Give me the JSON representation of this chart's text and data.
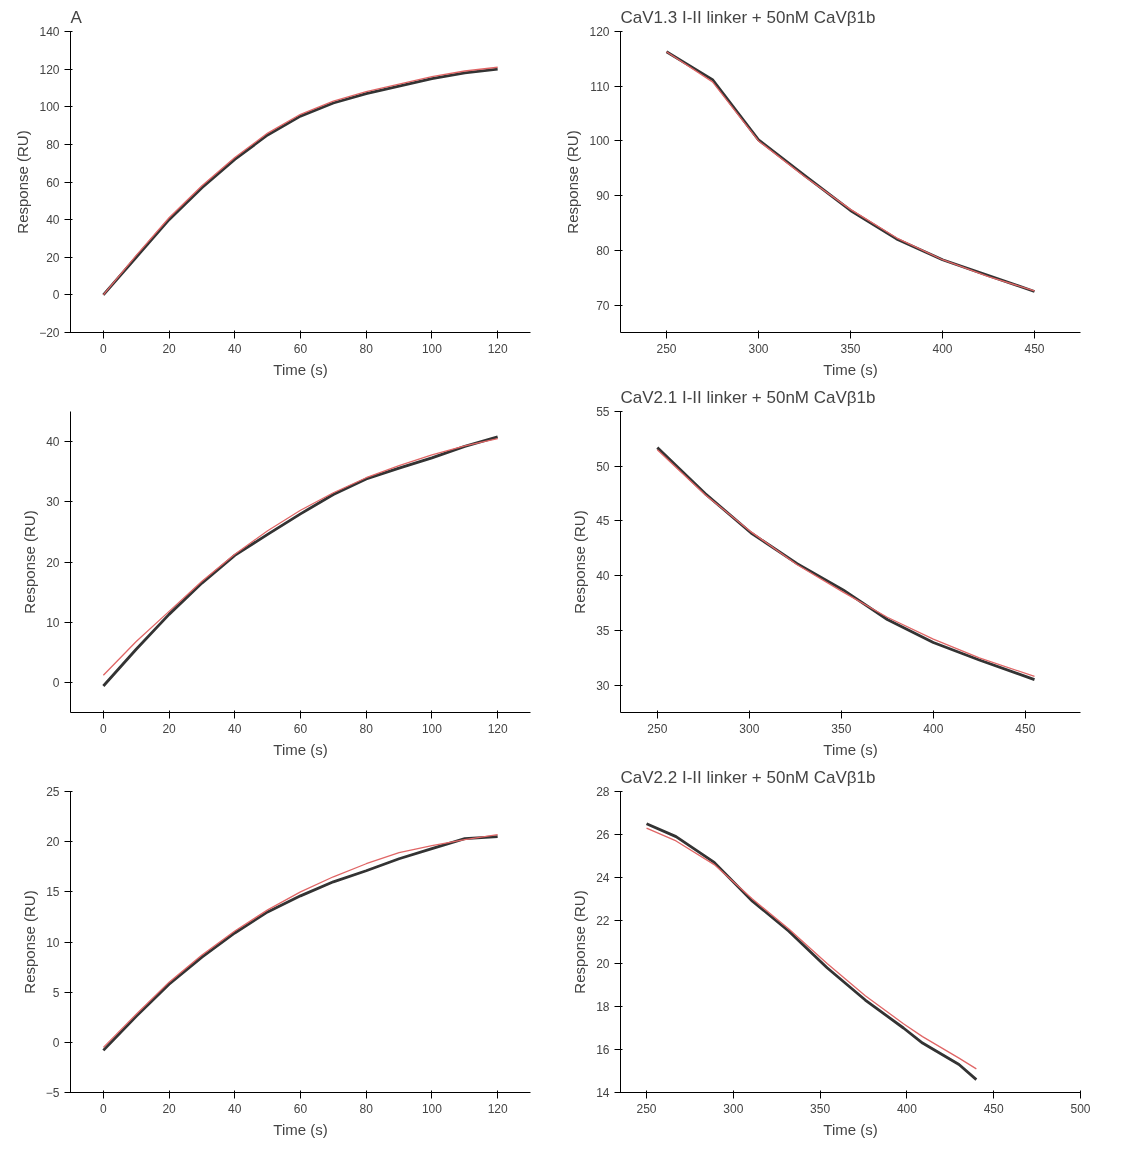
{
  "chart_data": [
    {
      "type": "line",
      "title": "A",
      "xlabel": "Time (s)",
      "ylabel": "Response (RU)",
      "xlim": [
        -10,
        130
      ],
      "xticks": [
        0,
        20,
        40,
        60,
        80,
        100,
        120
      ],
      "ylim": [
        -20,
        140
      ],
      "yticks": [
        -20,
        0,
        20,
        40,
        60,
        80,
        100,
        120,
        140
      ],
      "grid": false,
      "x": [
        0,
        10,
        20,
        30,
        40,
        50,
        60,
        70,
        80,
        90,
        100,
        110,
        120
      ],
      "series": [
        {
          "color": "#333333",
          "values": [
            0,
            20,
            40,
            57,
            72,
            85,
            95,
            102,
            107,
            111,
            115,
            118,
            120
          ]
        },
        {
          "color": "#e06666",
          "values": [
            0,
            21,
            41,
            58,
            73,
            86,
            96,
            103,
            108,
            112,
            116,
            119,
            121
          ]
        }
      ]
    },
    {
      "type": "line",
      "title": "CaV1.3 I-II linker + 50nM CaVβ1b",
      "xlabel": "Time (s)",
      "ylabel": "Response (RU)",
      "xlim": [
        225,
        475
      ],
      "xticks": [
        250,
        300,
        350,
        400,
        450
      ],
      "ylim": [
        65,
        120
      ],
      "yticks": [
        70,
        80,
        90,
        100,
        110,
        120
      ],
      "grid": false,
      "x": [
        250,
        275,
        300,
        325,
        350,
        375,
        400,
        425,
        450
      ],
      "series": [
        {
          "color": "#333333",
          "values": [
            116.3,
            111.2,
            100.2,
            93.7,
            87.3,
            82.1,
            78.3,
            75.4,
            72.5
          ]
        },
        {
          "color": "#e06666",
          "values": [
            116.3,
            110.8,
            100.0,
            93.5,
            87.5,
            82.3,
            78.3,
            75.2,
            72.6
          ]
        }
      ]
    },
    {
      "type": "line",
      "xlabel": "Time (s)",
      "ylabel": "Response (RU)",
      "xlim": [
        -10,
        130
      ],
      "xticks": [
        0,
        20,
        40,
        60,
        80,
        100,
        120
      ],
      "ylim": [
        -5,
        45
      ],
      "yticks": [
        0,
        10,
        20,
        30,
        40
      ],
      "grid": false,
      "x": [
        0,
        10,
        20,
        30,
        40,
        50,
        60,
        70,
        80,
        90,
        100,
        110,
        120
      ],
      "series": [
        {
          "color": "#333333",
          "values": [
            -0.6,
            5.5,
            11.3,
            16.5,
            21.1,
            24.6,
            28.0,
            31.2,
            33.8,
            35.6,
            37.3,
            39.2,
            40.8
          ]
        },
        {
          "color": "#e06666",
          "values": [
            1.2,
            6.8,
            11.8,
            16.8,
            21.3,
            25.2,
            28.6,
            31.5,
            34.0,
            36.0,
            37.8,
            39.3,
            40.5
          ]
        }
      ]
    },
    {
      "type": "line",
      "title": "CaV2.1 I-II linker + 50nM CaVβ1b",
      "xlabel": "Time (s)",
      "ylabel": "Response (RU)",
      "xlim": [
        230,
        480
      ],
      "xticks": [
        250,
        300,
        350,
        400,
        450
      ],
      "ylim": [
        27.5,
        55
      ],
      "yticks": [
        30,
        35,
        40,
        45,
        50,
        55
      ],
      "grid": false,
      "x": [
        250,
        276,
        301,
        326,
        351,
        375,
        400,
        425,
        455
      ],
      "series": [
        {
          "color": "#333333",
          "values": [
            51.7,
            47.5,
            43.9,
            41.1,
            38.7,
            36.0,
            33.9,
            32.3,
            30.5
          ]
        },
        {
          "color": "#e06666",
          "values": [
            51.5,
            47.4,
            44.0,
            41.0,
            38.5,
            36.2,
            34.2,
            32.5,
            30.8
          ]
        }
      ]
    },
    {
      "type": "line",
      "xlabel": "Time (s)",
      "ylabel": "Response (RU)",
      "xlim": [
        -10,
        130
      ],
      "xticks": [
        0,
        20,
        40,
        60,
        80,
        100,
        120
      ],
      "ylim": [
        -5,
        25
      ],
      "yticks": [
        -5,
        0,
        5,
        10,
        15,
        20,
        25
      ],
      "grid": false,
      "x": [
        0,
        10,
        20,
        30,
        40,
        50,
        60,
        70,
        80,
        90,
        100,
        110,
        120
      ],
      "series": [
        {
          "color": "#333333",
          "values": [
            -0.8,
            2.6,
            5.8,
            8.5,
            10.9,
            13.0,
            14.6,
            16.0,
            17.1,
            18.3,
            19.3,
            20.3,
            20.5
          ]
        },
        {
          "color": "#e06666",
          "values": [
            -0.5,
            2.8,
            6.0,
            8.7,
            11.1,
            13.2,
            15.0,
            16.5,
            17.8,
            18.9,
            19.6,
            20.2,
            20.7
          ]
        }
      ]
    },
    {
      "type": "line",
      "title": "CaV2.2 I-II linker + 50nM CaVβ1b",
      "xlabel": "Time (s)",
      "ylabel": "Response (RU)",
      "xlim": [
        235,
        500
      ],
      "xticks": [
        250,
        300,
        350,
        400,
        450,
        500
      ],
      "ylim": [
        14,
        28
      ],
      "yticks": [
        14,
        16,
        18,
        20,
        22,
        24,
        26,
        28
      ],
      "grid": false,
      "x": [
        250,
        267,
        289,
        311,
        332,
        354,
        376,
        398,
        409,
        430,
        440
      ],
      "series": [
        {
          "color": "#333333",
          "values": [
            26.5,
            25.9,
            24.7,
            22.9,
            21.5,
            19.8,
            18.3,
            17.0,
            16.3,
            15.3,
            14.6
          ]
        },
        {
          "color": "#e06666",
          "values": [
            26.3,
            25.7,
            24.6,
            23.0,
            21.6,
            20.0,
            18.5,
            17.2,
            16.6,
            15.6,
            15.1
          ]
        }
      ]
    }
  ]
}
